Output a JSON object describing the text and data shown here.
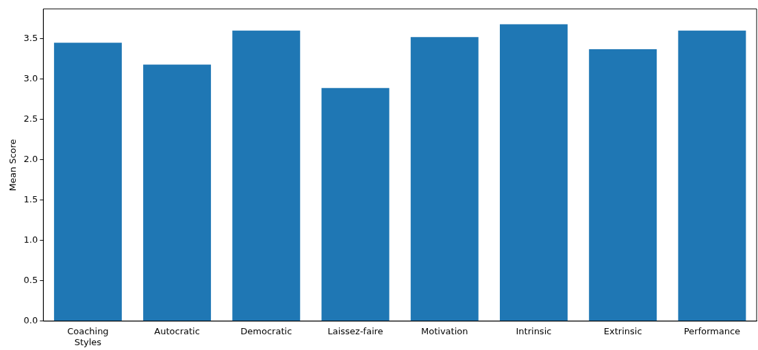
{
  "chart_data": {
    "type": "bar",
    "ylabel": "Mean Score",
    "categories": [
      "Coaching Styles",
      "Autocratic",
      "Democratic",
      "Laissez-faire",
      "Motivation",
      "Intrinsic",
      "Extrinsic",
      "Performance"
    ],
    "values": [
      3.45,
      3.18,
      3.6,
      2.89,
      3.52,
      3.68,
      3.37,
      3.6
    ],
    "color": "#1f77b4",
    "ylim": [
      0,
      3.87
    ],
    "yticks": [
      {
        "value": 0,
        "label": "0.0"
      },
      0.5,
      {
        "value": 1,
        "label": "1.0"
      },
      1.5,
      {
        "value": 2,
        "label": "2.0"
      },
      2.5,
      {
        "value": 3,
        "label": "3.0"
      },
      3.5
    ],
    "grid": false,
    "legend": false
  }
}
